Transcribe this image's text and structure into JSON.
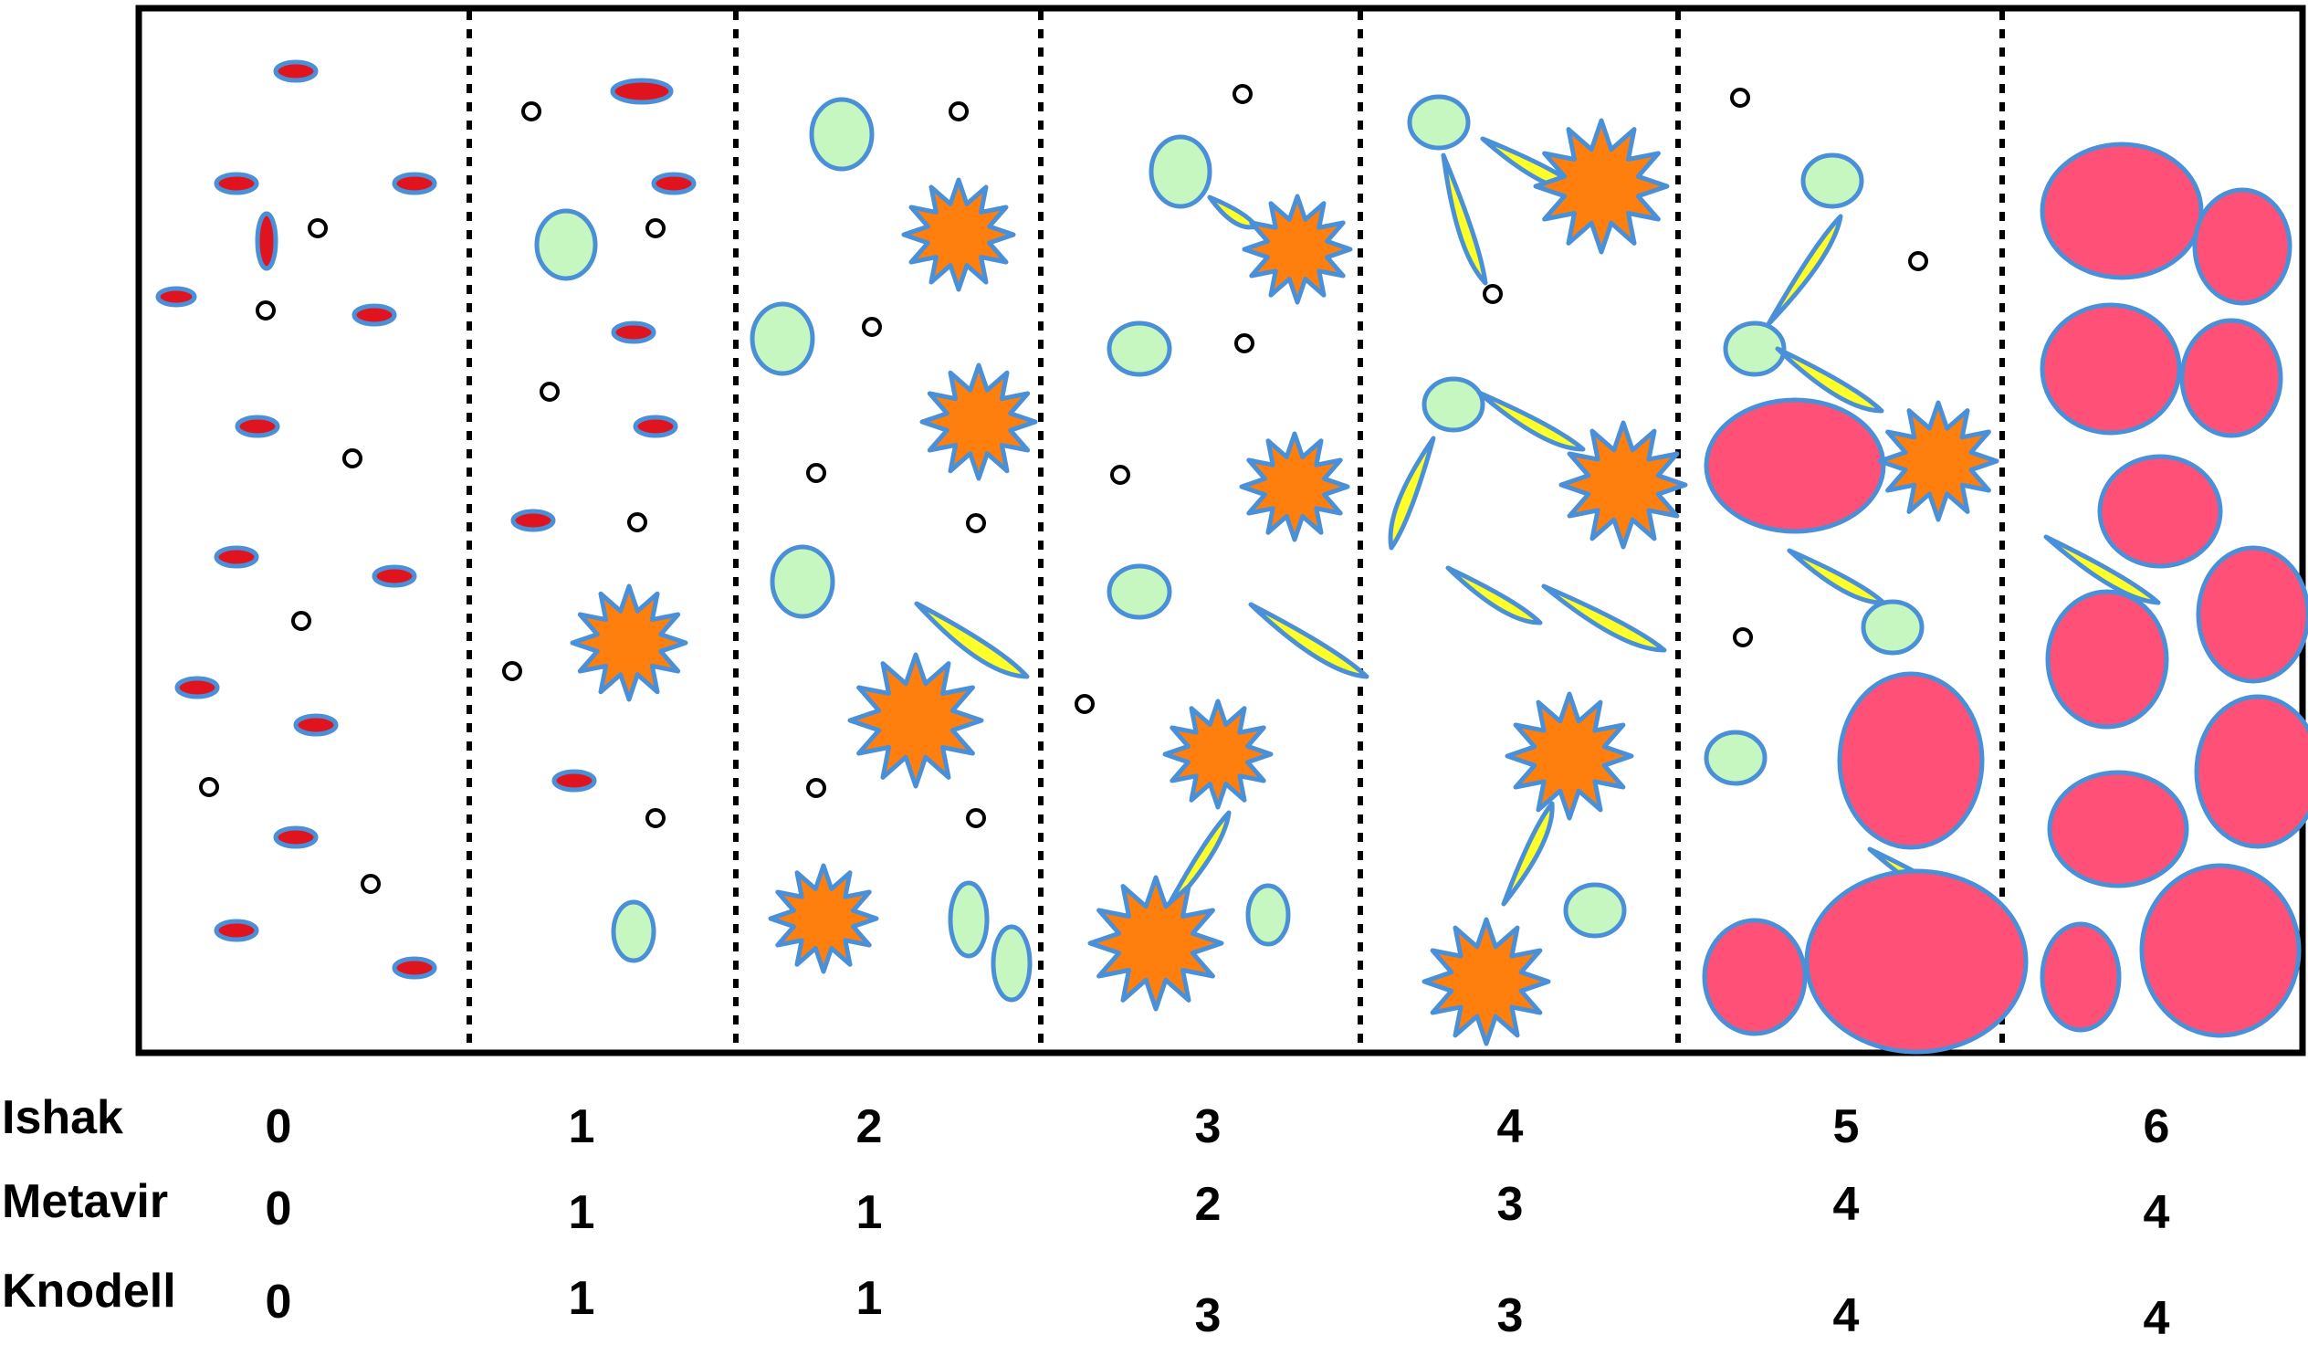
{
  "stages": [
    "0",
    "1",
    "2",
    "3",
    "4",
    "5",
    "6"
  ],
  "score_rows": [
    {
      "label": "Ishak",
      "values": [
        "0",
        "1",
        "2",
        "3",
        "4",
        "5",
        "6"
      ]
    },
    {
      "label": "Metavir",
      "values": [
        "0",
        "1",
        "1",
        "2",
        "3",
        "4",
        "4"
      ]
    },
    {
      "label": "Knodell",
      "values": [
        "0",
        "1",
        "1",
        "3",
        "3",
        "4",
        "4"
      ]
    }
  ],
  "colors": {
    "portal_tract": "#e0141e",
    "outline": "#4a90d9",
    "necrosis_fill": "#ff7f0e",
    "hepatocyte_fill": "#c6f7c0",
    "septum_fill": "#ffff2a",
    "nodule_fill": "#ff5077"
  },
  "icons": [
    "portal-tract-icon",
    "cell-icon",
    "necrosis-icon",
    "septum-icon",
    "nodule-icon"
  ]
}
